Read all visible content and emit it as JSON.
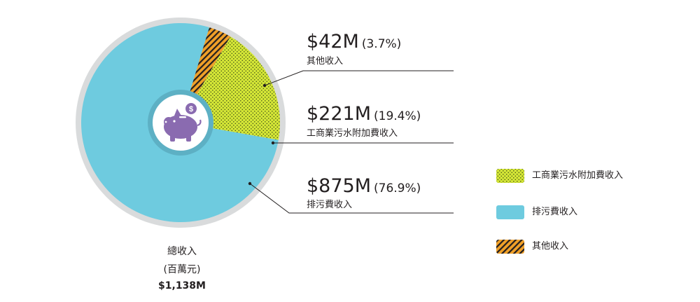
{
  "total": {
    "label": "總收入",
    "unit": "(百萬元)",
    "value": "$1,138M"
  },
  "callouts": [
    {
      "amount": "$42M",
      "percent": "(3.7%)",
      "name": "其他收入"
    },
    {
      "amount": "$221M",
      "percent": "(19.4%)",
      "name": "工商業污水附加費收入"
    },
    {
      "amount": "$875M",
      "percent": "(76.9%)",
      "name": "排污費收入"
    }
  ],
  "legend": [
    {
      "label": "工商業污水附加費收入"
    },
    {
      "label": "排污費收入"
    },
    {
      "label": "其他收入"
    }
  ],
  "icon": "piggy-bank-icon",
  "colors": {
    "sewage_charge": "#6ecbdf",
    "trade_effluent_fill": "#d4e636",
    "trade_effluent_dots": "#4a5a1a",
    "other_orange": "#f0a028",
    "other_stripe": "#231f20",
    "outer_ring": "#d9dbdc",
    "center_ring": "#5db0c4",
    "piggy": "#8a6bb0",
    "line": "#231f20"
  },
  "chart_data": {
    "type": "pie",
    "title": "",
    "categories": [
      "排污費收入",
      "工商業污水附加費收入",
      "其他收入"
    ],
    "values": [
      875,
      221,
      42
    ],
    "percent": [
      76.9,
      19.4,
      3.7
    ],
    "total": 1138,
    "unit": "百萬元",
    "legend_position": "right"
  }
}
